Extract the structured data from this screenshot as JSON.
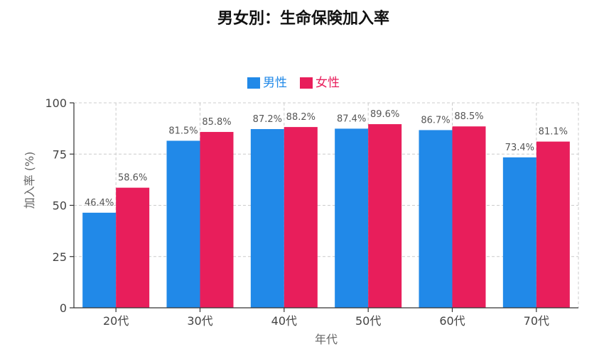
{
  "chart_data": {
    "type": "bar",
    "title": "男女別：生命保険加入率",
    "xlabel": "年代",
    "ylabel": "加入率 (%)",
    "categories": [
      "20代",
      "30代",
      "40代",
      "50代",
      "60代",
      "70代"
    ],
    "ylim": [
      0,
      100
    ],
    "yticks": [
      0,
      25,
      50,
      75,
      100
    ],
    "grid": true,
    "legend_position": "top-center",
    "series": [
      {
        "name": "男性",
        "color": "#2189e8",
        "values": [
          46.4,
          81.5,
          87.2,
          87.4,
          86.7,
          73.4
        ],
        "labels": [
          "46.4%",
          "81.5%",
          "87.2%",
          "87.4%",
          "86.7%",
          "73.4%"
        ]
      },
      {
        "name": "女性",
        "color": "#e81e5b",
        "values": [
          58.6,
          85.8,
          88.2,
          89.6,
          88.5,
          81.1
        ],
        "labels": [
          "58.6%",
          "85.8%",
          "88.2%",
          "89.6%",
          "88.5%",
          "81.1%"
        ]
      }
    ]
  }
}
